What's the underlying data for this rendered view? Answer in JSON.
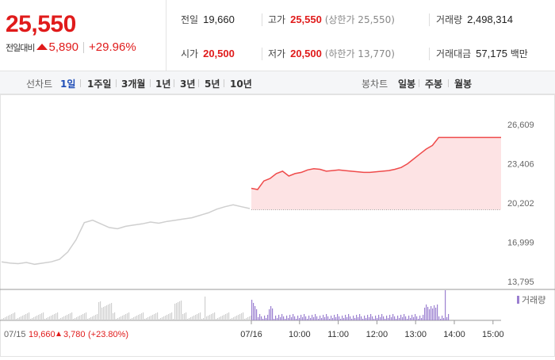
{
  "summary": {
    "price": "25,550",
    "change_label": "전일대비",
    "change_amount": "5,890",
    "change_pct": "+29.96%"
  },
  "stats": {
    "prev_label": "전일",
    "prev_value": "19,660",
    "high_label": "고가",
    "high_value": "25,550",
    "high_sub": "(상한가 25,550)",
    "volume_label": "거래량",
    "volume_value": "2,498,314",
    "open_label": "시가",
    "open_value": "20,500",
    "low_label": "저가",
    "low_value": "20,500",
    "low_sub": "(하한가 13,770)",
    "amount_label": "거래대금",
    "amount_value": "57,175",
    "amount_unit": "백만"
  },
  "tabs": {
    "line_label": "선차트",
    "line_tabs": [
      "1일",
      "1주일",
      "3개월",
      "1년",
      "3년",
      "5년",
      "10년"
    ],
    "candle_label": "봉차트",
    "candle_tabs": [
      "일봉",
      "주봉",
      "월봉"
    ]
  },
  "colors": {
    "red": "#e01b1b",
    "blue": "#1e4db7",
    "volume": "#9b7fd0"
  },
  "chart_data": {
    "type": "line",
    "y_ticks": [
      "26,609",
      "23,406",
      "20,202",
      "16,999",
      "13,795"
    ],
    "ylim": [
      13795,
      26609
    ],
    "prev_close": 19660,
    "legend": "거래량",
    "x_ticks": [
      "07/16",
      "10:00",
      "11:00",
      "12:00",
      "13:00",
      "14:00",
      "15:00"
    ],
    "footer_date": "07/15",
    "footer_close": "19,660",
    "footer_change": "3,780",
    "footer_pct": "(+23.80%)",
    "prev_day_series": [
      15400,
      15300,
      15250,
      15350,
      15200,
      15300,
      15400,
      15600,
      16200,
      17200,
      18600,
      18800,
      18500,
      18200,
      18100,
      18300,
      18400,
      18500,
      18650,
      18550,
      18700,
      18800,
      18900,
      19000,
      19200,
      19400,
      19700,
      19900,
      20050,
      19900,
      19750
    ],
    "today_series": [
      21400,
      21300,
      22000,
      22200,
      22600,
      22800,
      22400,
      22600,
      22700,
      22900,
      23000,
      22950,
      22800,
      22850,
      22900,
      22850,
      22800,
      22750,
      22700,
      22700,
      22750,
      22800,
      22850,
      22950,
      23100,
      23400,
      23800,
      24200,
      24600,
      24900,
      25550,
      25550,
      25550,
      25550,
      25550,
      25550,
      25550,
      25550,
      25550,
      25550,
      25550
    ]
  }
}
